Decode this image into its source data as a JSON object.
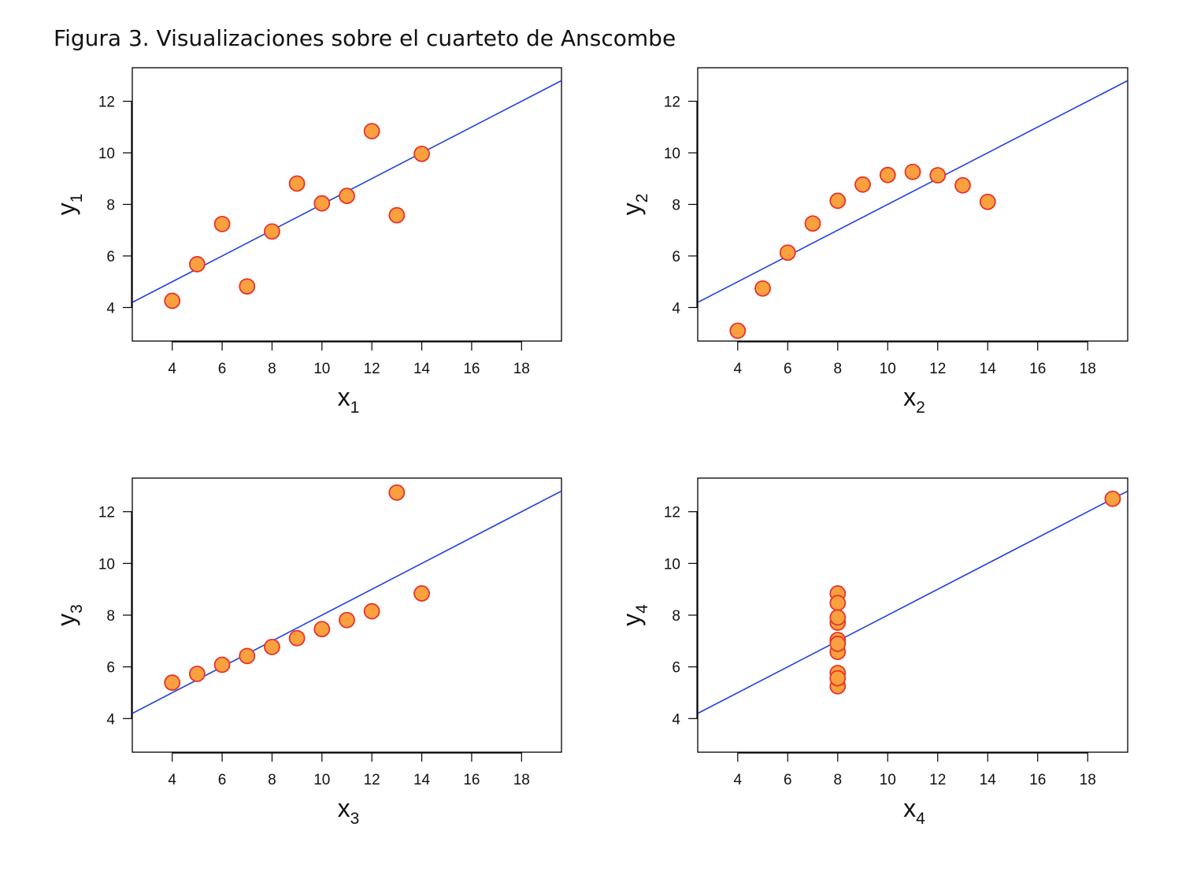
{
  "figure": {
    "title": "Figura 3. Visualizaciones sobre el cuarteto de Anscombe"
  },
  "style": {
    "point_fill": "#f9a03f",
    "point_stroke": "#e8322a",
    "line_color": "#1f3fe0",
    "frame_color": "#000000"
  },
  "chart_data": [
    {
      "type": "scatter",
      "title": "",
      "xlabel": "x",
      "xlabel_sub": "1",
      "ylabel": "y",
      "ylabel_sub": "1",
      "xlim": [
        2.4,
        19.6
      ],
      "ylim": [
        2.7,
        13.3
      ],
      "xticks": [
        4,
        6,
        8,
        10,
        12,
        14,
        16,
        18
      ],
      "yticks": [
        4,
        6,
        8,
        10,
        12
      ],
      "grid": false,
      "regression": {
        "intercept": 3.0,
        "slope": 0.5
      },
      "x": [
        10,
        8,
        13,
        9,
        11,
        14,
        6,
        4,
        12,
        7,
        5
      ],
      "y": [
        8.04,
        6.95,
        7.58,
        8.81,
        8.33,
        9.96,
        7.24,
        4.26,
        10.84,
        4.82,
        5.68
      ]
    },
    {
      "type": "scatter",
      "title": "",
      "xlabel": "x",
      "xlabel_sub": "2",
      "ylabel": "y",
      "ylabel_sub": "2",
      "xlim": [
        2.4,
        19.6
      ],
      "ylim": [
        2.7,
        13.3
      ],
      "xticks": [
        4,
        6,
        8,
        10,
        12,
        14,
        16,
        18
      ],
      "yticks": [
        4,
        6,
        8,
        10,
        12
      ],
      "grid": false,
      "regression": {
        "intercept": 3.0,
        "slope": 0.5
      },
      "x": [
        10,
        8,
        13,
        9,
        11,
        14,
        6,
        4,
        12,
        7,
        5
      ],
      "y": [
        9.14,
        8.14,
        8.74,
        8.77,
        9.26,
        8.1,
        6.13,
        3.1,
        9.13,
        7.26,
        4.74
      ]
    },
    {
      "type": "scatter",
      "title": "",
      "xlabel": "x",
      "xlabel_sub": "3",
      "ylabel": "y",
      "ylabel_sub": "3",
      "xlim": [
        2.4,
        19.6
      ],
      "ylim": [
        2.7,
        13.3
      ],
      "xticks": [
        4,
        6,
        8,
        10,
        12,
        14,
        16,
        18
      ],
      "yticks": [
        4,
        6,
        8,
        10,
        12
      ],
      "grid": false,
      "regression": {
        "intercept": 3.0,
        "slope": 0.5
      },
      "x": [
        10,
        8,
        13,
        9,
        11,
        14,
        6,
        4,
        12,
        7,
        5
      ],
      "y": [
        7.46,
        6.77,
        12.74,
        7.11,
        7.81,
        8.84,
        6.08,
        5.39,
        8.15,
        6.42,
        5.73
      ]
    },
    {
      "type": "scatter",
      "title": "",
      "xlabel": "x",
      "xlabel_sub": "4",
      "ylabel": "y",
      "ylabel_sub": "4",
      "xlim": [
        2.4,
        19.6
      ],
      "ylim": [
        2.7,
        13.3
      ],
      "xticks": [
        4,
        6,
        8,
        10,
        12,
        14,
        16,
        18
      ],
      "yticks": [
        4,
        6,
        8,
        10,
        12
      ],
      "grid": false,
      "regression": {
        "intercept": 3.0,
        "slope": 0.5
      },
      "x": [
        8,
        8,
        8,
        8,
        8,
        8,
        8,
        19,
        8,
        8,
        8
      ],
      "y": [
        6.58,
        5.76,
        7.71,
        8.84,
        8.47,
        7.04,
        5.25,
        12.5,
        5.56,
        7.91,
        6.89
      ]
    }
  ]
}
